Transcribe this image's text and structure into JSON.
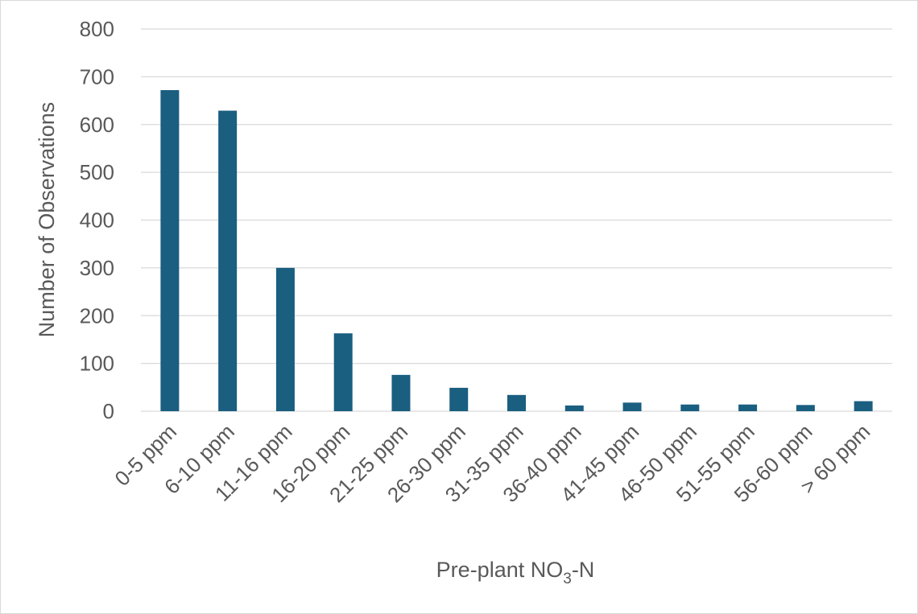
{
  "chart_data": {
    "type": "bar",
    "categories": [
      "0-5 ppm",
      "6-10 ppm",
      "11-16 ppm",
      "16-20 ppm",
      "21-25 ppm",
      "26-30 ppm",
      "31-35 ppm",
      "36-40 ppm",
      "41-45 ppm",
      "46-50 ppm",
      "51-55 ppm",
      "56-60 ppm",
      "> 60 ppm"
    ],
    "series": [
      {
        "values": [
          672,
          629,
          300,
          163,
          76,
          49,
          34,
          12,
          18,
          14,
          14,
          13,
          21
        ]
      }
    ],
    "title": "",
    "xlabel": {
      "main": "Pre-plant NO",
      "subscript": "3",
      "suffix": "-N"
    },
    "ylabel": "Number of Observations",
    "ylim": [
      0,
      800
    ],
    "yticks": [
      "0",
      "100",
      "200",
      "300",
      "400",
      "500",
      "600",
      "700",
      "800"
    ],
    "grid": true,
    "legend": "none",
    "bar_color": "#1a5e80"
  }
}
